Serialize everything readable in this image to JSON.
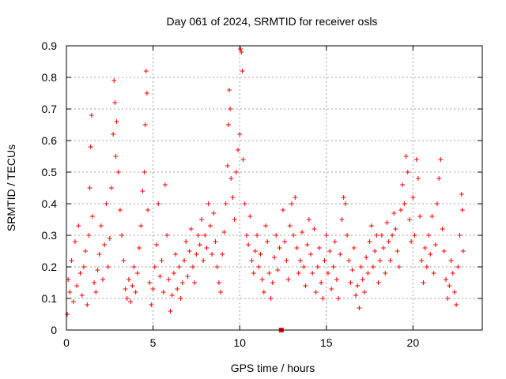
{
  "chart_data": {
    "type": "scatter",
    "title": "Day 061 of 2024, SRMTID for receiver osls",
    "xlabel": "GPS time / hours",
    "ylabel": "SRMTID / TECUs",
    "xlim": [
      0,
      24
    ],
    "ylim": [
      0,
      0.9
    ],
    "x_ticks": [
      0,
      5,
      10,
      15,
      20
    ],
    "x_tick_labels": [
      "0",
      "5",
      "10",
      "15",
      "20"
    ],
    "y_ticks": [
      0,
      0.1,
      0.2,
      0.3,
      0.4,
      0.5,
      0.6,
      0.7,
      0.8,
      0.9
    ],
    "y_tick_labels": [
      "0",
      "0.1",
      "0.2",
      "0.3",
      "0.4",
      "0.5",
      "0.6",
      "0.7",
      "0.8",
      "0.9"
    ],
    "grid": true,
    "marker": "+",
    "series_color": "#ff0000",
    "series": [
      {
        "name": "SRMTID",
        "points": [
          [
            0.05,
            0.05
          ],
          [
            0.1,
            0.16
          ],
          [
            0.2,
            0.12
          ],
          [
            0.3,
            0.22
          ],
          [
            0.4,
            0.09
          ],
          [
            0.5,
            0.28
          ],
          [
            0.6,
            0.14
          ],
          [
            0.7,
            0.33
          ],
          [
            0.8,
            0.18
          ],
          [
            0.9,
            0.11
          ],
          [
            1.0,
            0.2
          ],
          [
            1.1,
            0.25
          ],
          [
            1.2,
            0.08
          ],
          [
            1.3,
            0.3
          ],
          [
            1.35,
            0.45
          ],
          [
            1.4,
            0.58
          ],
          [
            1.45,
            0.68
          ],
          [
            1.5,
            0.36
          ],
          [
            1.6,
            0.15
          ],
          [
            1.7,
            0.12
          ],
          [
            1.8,
            0.19
          ],
          [
            1.9,
            0.24
          ],
          [
            2.0,
            0.33
          ],
          [
            2.1,
            0.16
          ],
          [
            2.2,
            0.27
          ],
          [
            2.3,
            0.4
          ],
          [
            2.4,
            0.2
          ],
          [
            2.5,
            0.29
          ],
          [
            2.6,
            0.45
          ],
          [
            2.7,
            0.62
          ],
          [
            2.75,
            0.79
          ],
          [
            2.8,
            0.72
          ],
          [
            2.85,
            0.55
          ],
          [
            2.9,
            0.66
          ],
          [
            3.0,
            0.5
          ],
          [
            3.1,
            0.38
          ],
          [
            3.2,
            0.3
          ],
          [
            3.3,
            0.22
          ],
          [
            3.4,
            0.13
          ],
          [
            3.5,
            0.1
          ],
          [
            3.6,
            0.16
          ],
          [
            3.7,
            0.09
          ],
          [
            3.8,
            0.14
          ],
          [
            3.9,
            0.2
          ],
          [
            4.0,
            0.12
          ],
          [
            4.1,
            0.18
          ],
          [
            4.2,
            0.26
          ],
          [
            4.3,
            0.33
          ],
          [
            4.4,
            0.44
          ],
          [
            4.5,
            0.5
          ],
          [
            4.55,
            0.65
          ],
          [
            4.6,
            0.82
          ],
          [
            4.65,
            0.75
          ],
          [
            4.7,
            0.38
          ],
          [
            4.8,
            0.15
          ],
          [
            4.9,
            0.08
          ],
          [
            5.0,
            0.13
          ],
          [
            5.1,
            0.2
          ],
          [
            5.2,
            0.27
          ],
          [
            5.3,
            0.4
          ],
          [
            5.4,
            0.17
          ],
          [
            5.5,
            0.22
          ],
          [
            5.6,
            0.12
          ],
          [
            5.7,
            0.46
          ],
          [
            5.8,
            0.3
          ],
          [
            5.9,
            0.16
          ],
          [
            6.0,
            0.06
          ],
          [
            6.1,
            0.11
          ],
          [
            6.2,
            0.18
          ],
          [
            6.3,
            0.24
          ],
          [
            6.4,
            0.13
          ],
          [
            6.5,
            0.2
          ],
          [
            6.6,
            0.1
          ],
          [
            6.7,
            0.15
          ],
          [
            6.8,
            0.22
          ],
          [
            6.9,
            0.28
          ],
          [
            7.0,
            0.17
          ],
          [
            7.1,
            0.25
          ],
          [
            7.2,
            0.32
          ],
          [
            7.3,
            0.2
          ],
          [
            7.4,
            0.15
          ],
          [
            7.5,
            0.24
          ],
          [
            7.6,
            0.3
          ],
          [
            7.7,
            0.27
          ],
          [
            7.8,
            0.35
          ],
          [
            7.9,
            0.22
          ],
          [
            8.0,
            0.3
          ],
          [
            8.1,
            0.26
          ],
          [
            8.2,
            0.4
          ],
          [
            8.3,
            0.33
          ],
          [
            8.4,
            0.24
          ],
          [
            8.5,
            0.37
          ],
          [
            8.6,
            0.28
          ],
          [
            8.7,
            0.2
          ],
          [
            8.8,
            0.15
          ],
          [
            8.9,
            0.12
          ],
          [
            9.0,
            0.24
          ],
          [
            9.1,
            0.31
          ],
          [
            9.2,
            0.4
          ],
          [
            9.3,
            0.52
          ],
          [
            9.35,
            0.65
          ],
          [
            9.4,
            0.76
          ],
          [
            9.45,
            0.7
          ],
          [
            9.5,
            0.48
          ],
          [
            9.6,
            0.42
          ],
          [
            9.7,
            0.35
          ],
          [
            9.8,
            0.5
          ],
          [
            9.9,
            0.57
          ],
          [
            10.0,
            0.62
          ],
          [
            10.05,
            0.89
          ],
          [
            10.1,
            0.88
          ],
          [
            10.15,
            0.82
          ],
          [
            10.2,
            0.54
          ],
          [
            10.3,
            0.4
          ],
          [
            10.4,
            0.3
          ],
          [
            10.5,
            0.27
          ],
          [
            10.6,
            0.36
          ],
          [
            10.7,
            0.22
          ],
          [
            10.8,
            0.18
          ],
          [
            10.9,
            0.25
          ],
          [
            11.0,
            0.3
          ],
          [
            11.1,
            0.2
          ],
          [
            11.2,
            0.24
          ],
          [
            11.3,
            0.16
          ],
          [
            11.4,
            0.12
          ],
          [
            11.5,
            0.33
          ],
          [
            11.6,
            0.28
          ],
          [
            11.7,
            0.18
          ],
          [
            11.8,
            0.1
          ],
          [
            11.9,
            0.15
          ],
          [
            12.0,
            0.23
          ],
          [
            12.1,
            0.3
          ],
          [
            12.2,
            0.19
          ],
          [
            12.3,
            0.26
          ],
          [
            12.5,
            0.38
          ],
          [
            12.6,
            0.28
          ],
          [
            12.7,
            0.22
          ],
          [
            12.8,
            0.16
          ],
          [
            12.9,
            0.33
          ],
          [
            13.0,
            0.4
          ],
          [
            13.1,
            0.3
          ],
          [
            13.2,
            0.42
          ],
          [
            13.3,
            0.26
          ],
          [
            13.4,
            0.18
          ],
          [
            13.5,
            0.22
          ],
          [
            13.6,
            0.31
          ],
          [
            13.7,
            0.2
          ],
          [
            13.8,
            0.14
          ],
          [
            13.9,
            0.27
          ],
          [
            14.0,
            0.35
          ],
          [
            14.1,
            0.24
          ],
          [
            14.2,
            0.18
          ],
          [
            14.3,
            0.32
          ],
          [
            14.4,
            0.12
          ],
          [
            14.5,
            0.2
          ],
          [
            14.6,
            0.26
          ],
          [
            14.7,
            0.15
          ],
          [
            14.8,
            0.1
          ],
          [
            14.9,
            0.22
          ],
          [
            15.0,
            0.3
          ],
          [
            15.1,
            0.18
          ],
          [
            15.2,
            0.25
          ],
          [
            15.3,
            0.13
          ],
          [
            15.4,
            0.2
          ],
          [
            15.5,
            0.28
          ],
          [
            15.6,
            0.16
          ],
          [
            15.7,
            0.1
          ],
          [
            15.8,
            0.24
          ],
          [
            15.9,
            0.35
          ],
          [
            16.0,
            0.42
          ],
          [
            16.1,
            0.4
          ],
          [
            16.2,
            0.3
          ],
          [
            16.3,
            0.22
          ],
          [
            16.4,
            0.15
          ],
          [
            16.5,
            0.19
          ],
          [
            16.6,
            0.26
          ],
          [
            16.7,
            0.11
          ],
          [
            16.8,
            0.14
          ],
          [
            16.9,
            0.07
          ],
          [
            17.0,
            0.2
          ],
          [
            17.1,
            0.16
          ],
          [
            17.2,
            0.12
          ],
          [
            17.3,
            0.23
          ],
          [
            17.4,
            0.18
          ],
          [
            17.5,
            0.28
          ],
          [
            17.6,
            0.33
          ],
          [
            17.7,
            0.2
          ],
          [
            17.8,
            0.25
          ],
          [
            17.9,
            0.3
          ],
          [
            18.0,
            0.15
          ],
          [
            18.1,
            0.22
          ],
          [
            18.2,
            0.3
          ],
          [
            18.3,
            0.26
          ],
          [
            18.4,
            0.18
          ],
          [
            18.5,
            0.34
          ],
          [
            18.6,
            0.28
          ],
          [
            18.7,
            0.22
          ],
          [
            18.8,
            0.3
          ],
          [
            18.9,
            0.37
          ],
          [
            19.0,
            0.32
          ],
          [
            19.1,
            0.25
          ],
          [
            19.2,
            0.2
          ],
          [
            19.3,
            0.38
          ],
          [
            19.4,
            0.46
          ],
          [
            19.5,
            0.4
          ],
          [
            19.6,
            0.55
          ],
          [
            19.7,
            0.5
          ],
          [
            19.8,
            0.35
          ],
          [
            19.9,
            0.28
          ],
          [
            20.0,
            0.42
          ],
          [
            20.1,
            0.3
          ],
          [
            20.2,
            0.54
          ],
          [
            20.3,
            0.48
          ],
          [
            20.4,
            0.36
          ],
          [
            20.5,
            0.22
          ],
          [
            20.6,
            0.15
          ],
          [
            20.7,
            0.26
          ],
          [
            20.8,
            0.2
          ],
          [
            20.9,
            0.3
          ],
          [
            21.0,
            0.24
          ],
          [
            21.1,
            0.36
          ],
          [
            21.2,
            0.18
          ],
          [
            21.3,
            0.27
          ],
          [
            21.4,
            0.4
          ],
          [
            21.5,
            0.48
          ],
          [
            21.6,
            0.54
          ],
          [
            21.7,
            0.32
          ],
          [
            21.8,
            0.25
          ],
          [
            21.9,
            0.16
          ],
          [
            22.0,
            0.1
          ],
          [
            22.1,
            0.14
          ],
          [
            22.2,
            0.22
          ],
          [
            22.3,
            0.18
          ],
          [
            22.4,
            0.12
          ],
          [
            22.5,
            0.08
          ],
          [
            22.6,
            0.2
          ],
          [
            22.7,
            0.3
          ],
          [
            22.8,
            0.43
          ],
          [
            22.85,
            0.38
          ],
          [
            22.9,
            0.25
          ]
        ]
      }
    ],
    "annotations": [
      {
        "label": "red square marker on x-axis",
        "x": 12.4,
        "y": 0.0
      }
    ]
  }
}
